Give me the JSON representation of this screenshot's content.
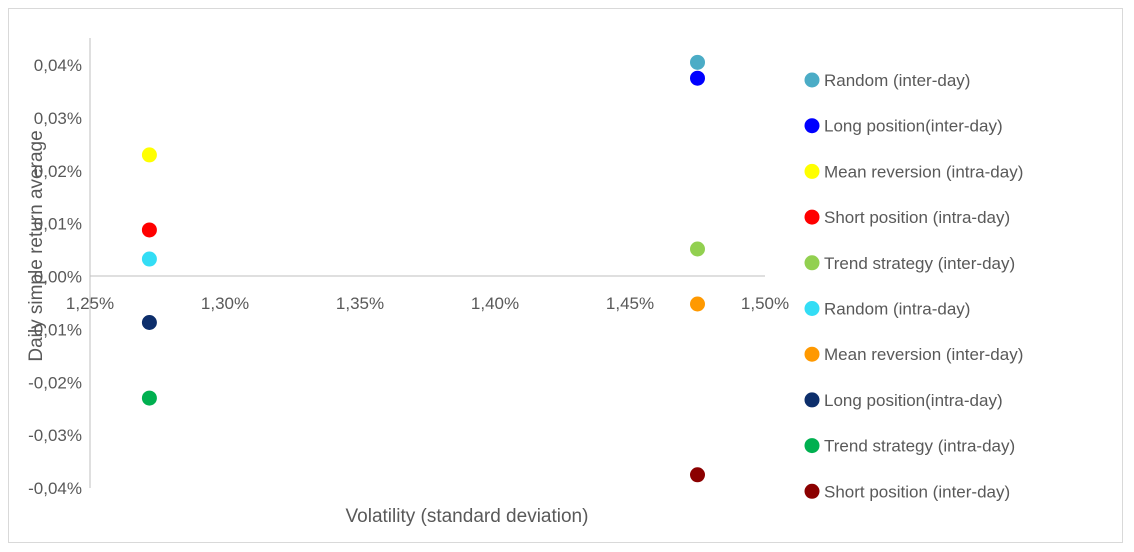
{
  "chart_data": {
    "type": "scatter",
    "title": "",
    "xlabel": "Volatility (standard deviation)",
    "ylabel": "Daily simple return average",
    "xlim": [
      1.25,
      1.5
    ],
    "ylim": [
      -0.04,
      0.045
    ],
    "x_ticks": [
      "1,25%",
      "1,30%",
      "1,35%",
      "1,40%",
      "1,45%",
      "1,50%"
    ],
    "x_tick_values": [
      1.25,
      1.3,
      1.35,
      1.4,
      1.45,
      1.5
    ],
    "y_ticks": [
      "0,04%",
      "0,03%",
      "0,02%",
      "0,01%",
      "0,00%",
      "-0,01%",
      "-0,02%",
      "-0,03%",
      "-0,04%"
    ],
    "y_tick_values": [
      0.04,
      0.03,
      0.02,
      0.01,
      0.0,
      -0.01,
      -0.02,
      -0.03,
      -0.04
    ],
    "grid": false,
    "legend_position": "right",
    "series": [
      {
        "name": "Random (inter-day)",
        "color": "#4bacc6",
        "x": 1.475,
        "y": 0.0405
      },
      {
        "name": "Long position(inter-day)",
        "color": "#0000ff",
        "x": 1.475,
        "y": 0.0375
      },
      {
        "name": "Mean reversion (intra-day)",
        "color": "#ffff00",
        "x": 1.272,
        "y": 0.023
      },
      {
        "name": "Short position (intra-day)",
        "color": "#ff0000",
        "x": 1.272,
        "y": 0.0088
      },
      {
        "name": "Trend strategy (inter-day)",
        "color": "#92d050",
        "x": 1.475,
        "y": 0.0052
      },
      {
        "name": "Random (intra-day)",
        "color": "#33ddf5",
        "x": 1.272,
        "y": 0.0033
      },
      {
        "name": "Mean reversion (inter-day)",
        "color": "#ff9900",
        "x": 1.475,
        "y": -0.0052
      },
      {
        "name": "Long position(intra-day)",
        "color": "#0d2e6b",
        "x": 1.272,
        "y": -0.0087
      },
      {
        "name": "Trend strategy (intra-day)",
        "color": "#00b050",
        "x": 1.272,
        "y": -0.023
      },
      {
        "name": "Short position (inter-day)",
        "color": "#8b0000",
        "x": 1.475,
        "y": -0.0375
      }
    ]
  }
}
